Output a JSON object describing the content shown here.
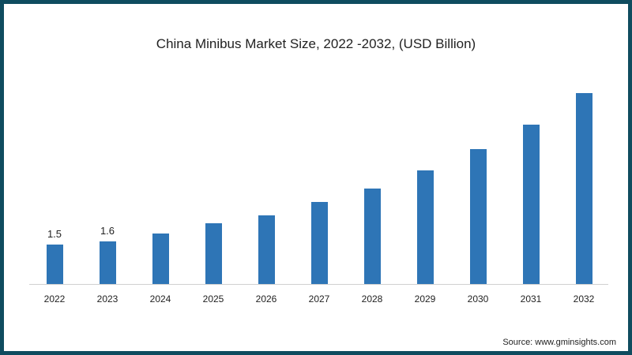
{
  "chart_data": {
    "type": "bar",
    "title": "China Minibus Market Size, 2022 -2032, (USD Billion)",
    "categories": [
      "2022",
      "2023",
      "2024",
      "2025",
      "2026",
      "2027",
      "2028",
      "2029",
      "2030",
      "2031",
      "2032"
    ],
    "values": [
      1.5,
      1.6,
      1.9,
      2.3,
      2.6,
      3.1,
      3.6,
      4.3,
      5.1,
      6.0,
      7.2
    ],
    "data_labels": {
      "2022": "1.5",
      "2023": "1.6"
    },
    "xlabel": "",
    "ylabel": "USD Billion",
    "grid": false,
    "color": "#2e75b6"
  },
  "source": "Source: www.gminsights.com"
}
